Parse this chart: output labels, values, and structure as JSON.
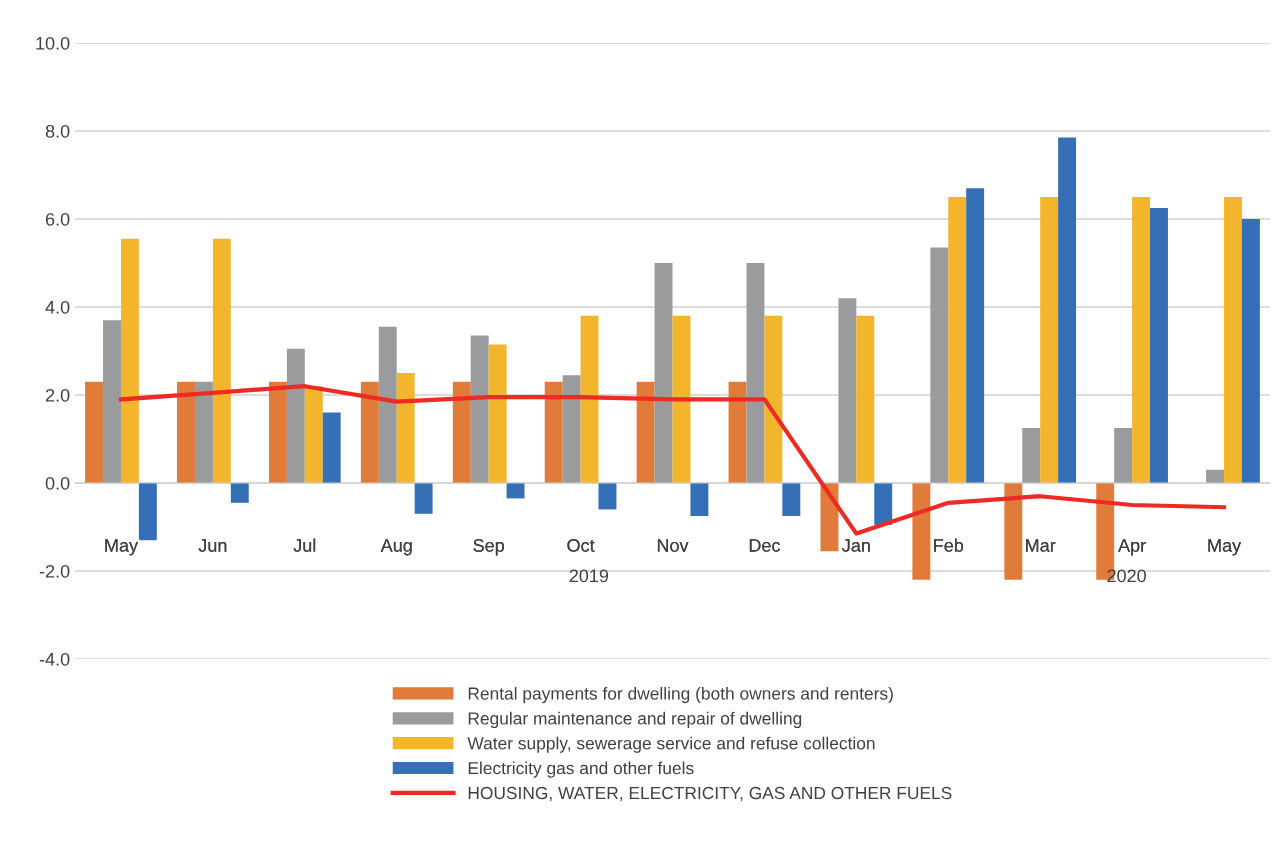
{
  "chart_data": {
    "type": "bar",
    "categories": [
      "May",
      "Jun",
      "Jul",
      "Aug",
      "Sep",
      "Oct",
      "Nov",
      "Dec",
      "Jan",
      "Feb",
      "Mar",
      "Apr",
      "May"
    ],
    "series": [
      {
        "name": "Rental payments for dwelling (both owners and renters)",
        "color": "#e07b39",
        "values": [
          2.3,
          2.3,
          2.3,
          2.3,
          2.3,
          2.3,
          2.3,
          2.3,
          -1.55,
          -2.2,
          -2.2,
          -2.2,
          0
        ]
      },
      {
        "name": "Regular maintenance and repair of dwelling",
        "color": "#999b9c",
        "values": [
          3.7,
          2.3,
          3.05,
          3.55,
          3.35,
          2.45,
          5.0,
          5.0,
          4.2,
          5.35,
          1.25,
          1.25,
          0.3
        ]
      },
      {
        "name": "Water supply, sewerage service and refuse collection",
        "color": "#f2b52c",
        "values": [
          5.55,
          5.55,
          2.2,
          2.5,
          3.15,
          3.8,
          3.8,
          3.8,
          3.8,
          6.5,
          6.5,
          6.5,
          6.5
        ]
      },
      {
        "name": "Electricity gas and other fuels",
        "color": "#3570b7",
        "values": [
          -1.3,
          -0.45,
          1.6,
          -0.7,
          -0.35,
          -0.6,
          -0.75,
          -0.75,
          -0.95,
          6.7,
          7.85,
          6.25,
          6.0
        ]
      },
      {
        "name": "HOUSING, WATER, ELECTRICITY, GAS AND OTHER FUELS",
        "type": "line",
        "color": "#ee2a24",
        "values": [
          1.9,
          2.05,
          2.2,
          1.85,
          1.95,
          1.95,
          1.9,
          1.9,
          -1.15,
          -0.45,
          -0.3,
          -0.5,
          -0.55
        ]
      }
    ],
    "ylim": [
      -4.0,
      10.0
    ],
    "yticks": [
      {
        "value": -4,
        "label": "-4.0"
      },
      {
        "value": -2,
        "label": "-2.0"
      },
      {
        "value": 0,
        "label": "0.0"
      },
      {
        "value": 2,
        "label": "2.0"
      },
      {
        "value": 4,
        "label": "4.0"
      },
      {
        "value": 6,
        "label": "6.0"
      },
      {
        "value": 8,
        "label": "8.0"
      },
      {
        "value": 10,
        "label": "10.0"
      }
    ],
    "annotations": [
      "2019",
      "2020"
    ],
    "grid": "y",
    "legend": "bottom"
  }
}
